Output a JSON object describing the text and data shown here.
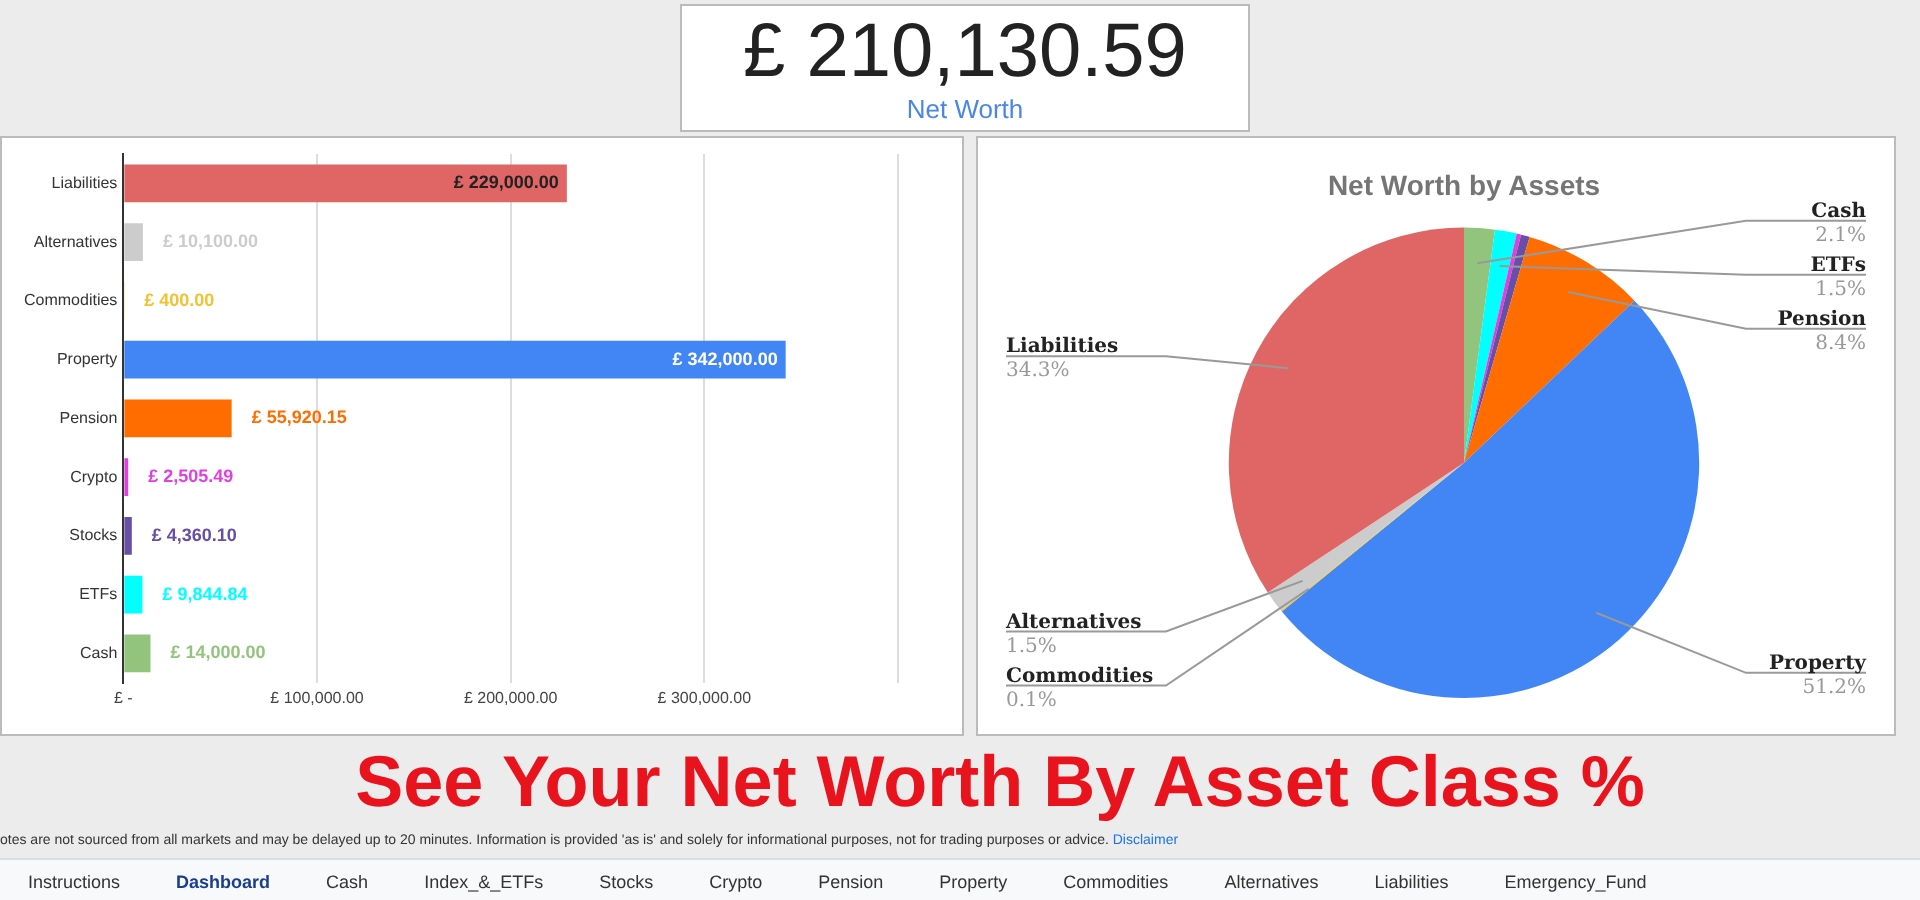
{
  "chart_data": [
    {
      "type": "other",
      "title": "£ 210,130.59",
      "subtitle": "Net Worth"
    },
    {
      "type": "bar",
      "orientation": "horizontal",
      "categories": [
        "Liabilities",
        "Alternatives",
        "Commodities",
        "Property",
        "Pension",
        "Crypto",
        "Stocks",
        "ETFs",
        "Cash"
      ],
      "values": [
        229000,
        10100,
        400,
        342000,
        55920.15,
        2505.49,
        4360.1,
        9844.84,
        14000
      ],
      "colors": [
        "#e06666",
        "#cccccc",
        "#f1c232",
        "#4285f4",
        "#ff6d01",
        "#e040e0",
        "#674ea7",
        "#00ffff",
        "#93c47d"
      ],
      "value_labels": [
        "£ 229,000.00",
        "£ 10,100.00",
        "£ 400.00",
        "£ 342,000.00",
        "£ 55,920.15",
        "£ 2,505.49",
        "£ 4,360.10",
        "£ 9,844.84",
        "£ 14,000.00"
      ],
      "xlim": [
        0,
        400000
      ],
      "xticks": [
        {
          "value": 0,
          "label": "£ -"
        },
        {
          "value": 100000,
          "label": "£ 100,000.00"
        },
        {
          "value": 200000,
          "label": "£ 200,000.00"
        },
        {
          "value": 300000,
          "label": "£ 300,000.00"
        },
        {
          "value": 400000,
          "label": null
        }
      ],
      "grid": "x",
      "legend": false
    },
    {
      "type": "pie",
      "title": "Net Worth by Assets",
      "categories": [
        "Cash",
        "ETFs",
        null,
        null,
        "Pension",
        "Property",
        "Commodities",
        "Alternatives",
        "Liabilities"
      ],
      "values": [
        2.1,
        1.5,
        0.3,
        0.6,
        8.4,
        51.2,
        0.1,
        1.5,
        34.3
      ],
      "colors": [
        "#93c47d",
        "#00ffff",
        "#e040e0",
        "#674ea7",
        "#ff6d01",
        "#4285f4",
        "#f1c232",
        "#cccccc",
        "#e06666"
      ],
      "value_labels": [
        "2.1%",
        "1.5%",
        null,
        null,
        "8.4%",
        "51.2%",
        "0.1%",
        "1.5%",
        "34.3%"
      ],
      "legend": false
    },
    {
      "type": "other",
      "title": "See Your Net Worth By Asset Class %",
      "annotations": [
        "otes are not sourced from all markets and may be delayed up to 20 minutes. Information is provided 'as is' and solely for informational purposes, not for trading purposes or advice.",
        "Disclaimer",
        "Instructions",
        "Dashboard",
        "Cash",
        "Index_&_ETFs",
        "Stocks",
        "Crypto",
        "Pension",
        "Property",
        "Commodities",
        "Alternatives",
        "Liabilities",
        "Emergency_Fund"
      ]
    }
  ]
}
